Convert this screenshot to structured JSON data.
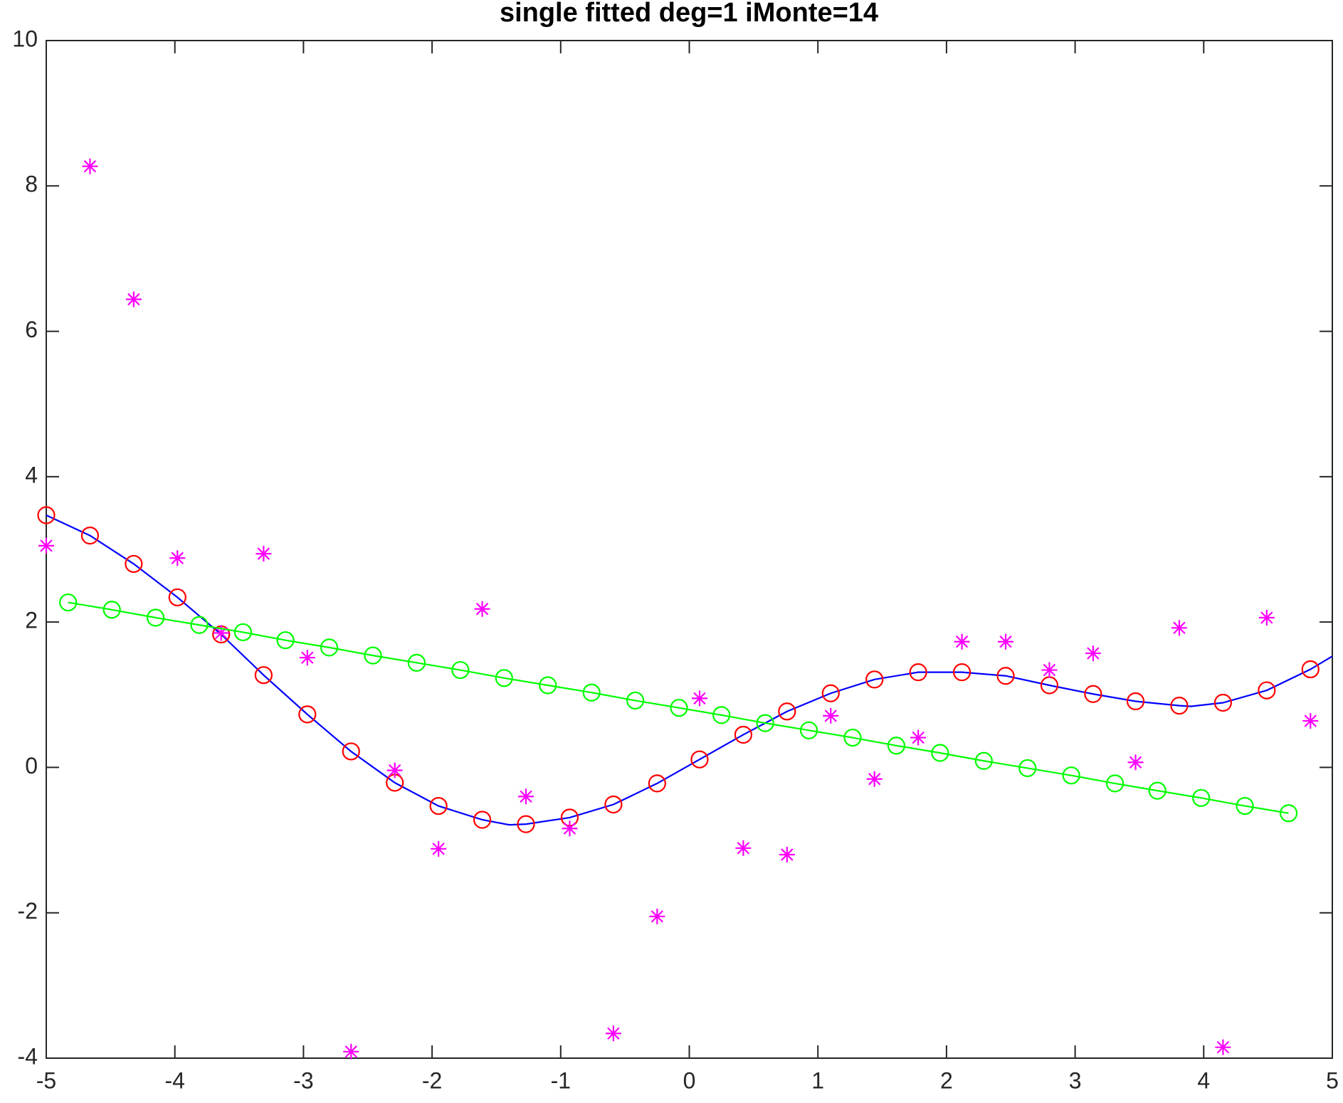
{
  "chart_data": {
    "type": "line",
    "title": "single fitted deg=1 iMonte=14",
    "xlim": [
      -5,
      5
    ],
    "ylim": [
      -4,
      10
    ],
    "xticks": [
      -5,
      -4,
      -3,
      -2,
      -1,
      0,
      1,
      2,
      3,
      4,
      5
    ],
    "yticks": [
      -4,
      -2,
      0,
      2,
      4,
      6,
      8,
      10
    ],
    "series": [
      {
        "color": "#0000ff",
        "marker": "none",
        "line": true,
        "x": [
          -5,
          -4.66,
          -4.32,
          -3.98,
          -3.64,
          -3.31,
          -2.97,
          -2.63,
          -2.29,
          -1.95,
          -1.61,
          -1.4,
          -1.27,
          -0.93,
          -0.59,
          -0.25,
          0.08,
          0.42,
          0.76,
          1.1,
          1.44,
          1.78,
          1.95,
          2.12,
          2.46,
          2.8,
          3.14,
          3.47,
          3.81,
          3.9,
          4.15,
          4.49,
          4.83,
          5
        ],
        "values": [
          3.47,
          3.19,
          2.8,
          2.34,
          1.83,
          1.27,
          0.73,
          0.22,
          -0.21,
          -0.53,
          -0.72,
          -0.79,
          -0.78,
          -0.69,
          -0.51,
          -0.22,
          0.11,
          0.45,
          0.77,
          1.02,
          1.21,
          1.31,
          1.31,
          1.31,
          1.26,
          1.13,
          1.01,
          0.91,
          0.85,
          0.84,
          0.89,
          1.06,
          1.35,
          1.53
        ]
      },
      {
        "color": "#ff0000",
        "marker": "o",
        "line": false,
        "x": [
          -5,
          -4.66,
          -4.32,
          -3.98,
          -3.64,
          -3.31,
          -2.97,
          -2.63,
          -2.29,
          -1.95,
          -1.61,
          -1.27,
          -0.93,
          -0.59,
          -0.25,
          0.08,
          0.42,
          0.76,
          1.1,
          1.44,
          1.78,
          2.12,
          2.46,
          2.8,
          3.14,
          3.47,
          3.81,
          4.15,
          4.49,
          4.83
        ],
        "values": [
          3.47,
          3.19,
          2.8,
          2.34,
          1.83,
          1.27,
          0.73,
          0.22,
          -0.21,
          -0.53,
          -0.72,
          -0.78,
          -0.69,
          -0.51,
          -0.22,
          0.11,
          0.45,
          0.77,
          1.02,
          1.21,
          1.31,
          1.31,
          1.26,
          1.13,
          1.01,
          0.91,
          0.85,
          0.89,
          1.06,
          1.35
        ]
      },
      {
        "color": "#ff00ff",
        "marker": "*",
        "line": false,
        "x": [
          -5,
          -4.66,
          -4.32,
          -3.98,
          -3.64,
          -3.31,
          -2.97,
          -2.63,
          -2.29,
          -1.95,
          -1.61,
          -1.27,
          -0.93,
          -0.59,
          -0.25,
          0.08,
          0.42,
          0.76,
          1.1,
          1.44,
          1.78,
          2.12,
          2.46,
          2.8,
          3.14,
          3.47,
          3.81,
          4.15,
          4.49,
          4.83
        ],
        "values": [
          3.05,
          8.27,
          6.44,
          2.88,
          1.85,
          2.94,
          1.51,
          -3.91,
          -0.04,
          -1.12,
          2.18,
          -0.4,
          -0.84,
          -3.66,
          -2.05,
          0.95,
          -1.11,
          -1.2,
          0.71,
          -0.16,
          0.41,
          1.73,
          1.73,
          1.34,
          1.57,
          0.07,
          1.92,
          -3.85,
          2.06,
          0.64
        ]
      },
      {
        "color": "#00ff00",
        "marker": "o",
        "line": true,
        "x": [
          -4.83,
          -4.49,
          -4.15,
          -3.81,
          -3.47,
          -3.14,
          -2.8,
          -2.46,
          -2.12,
          -1.78,
          -1.44,
          -1.1,
          -0.76,
          -0.42,
          -0.08,
          0.25,
          0.59,
          0.93,
          1.27,
          1.61,
          1.95,
          2.29,
          2.63,
          2.97,
          3.31,
          3.64,
          3.98,
          4.32,
          4.66
        ],
        "values": [
          2.27,
          2.17,
          2.06,
          1.96,
          1.86,
          1.75,
          1.65,
          1.54,
          1.44,
          1.34,
          1.23,
          1.13,
          1.03,
          0.92,
          0.82,
          0.72,
          0.61,
          0.51,
          0.41,
          0.3,
          0.2,
          0.09,
          -0.01,
          -0.11,
          -0.22,
          -0.32,
          -0.42,
          -0.53,
          -0.63
        ]
      }
    ]
  }
}
